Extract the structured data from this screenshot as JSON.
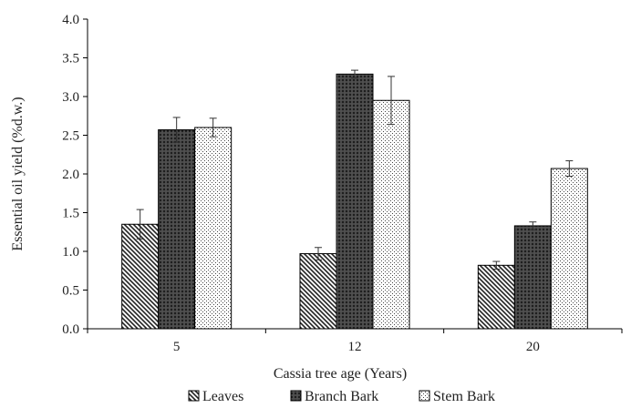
{
  "chart_data": {
    "type": "bar",
    "title": "",
    "xlabel": "Cassia tree age (Years)",
    "ylabel": "Essential oil yield (%d.w.)",
    "categories": [
      "5",
      "12",
      "20"
    ],
    "ylim": [
      0,
      4.0
    ],
    "yticks": [
      "0.0",
      "0.5",
      "1.0",
      "1.5",
      "2.0",
      "2.5",
      "3.0",
      "3.5",
      "4.0"
    ],
    "grid": false,
    "legend_position": "bottom",
    "series": [
      {
        "name": "Leaves",
        "pattern": "diagonal-hatch",
        "values": [
          1.35,
          0.97,
          0.82
        ],
        "errors": [
          0.19,
          0.08,
          0.05
        ]
      },
      {
        "name": "Branch Bark",
        "pattern": "dense-crosshatch",
        "values": [
          2.57,
          3.29,
          1.33
        ],
        "errors": [
          0.16,
          0.05,
          0.05
        ]
      },
      {
        "name": "Stem Bark",
        "pattern": "light-dots",
        "values": [
          2.6,
          2.95,
          2.07
        ],
        "errors": [
          0.12,
          0.31,
          0.1
        ]
      }
    ]
  }
}
